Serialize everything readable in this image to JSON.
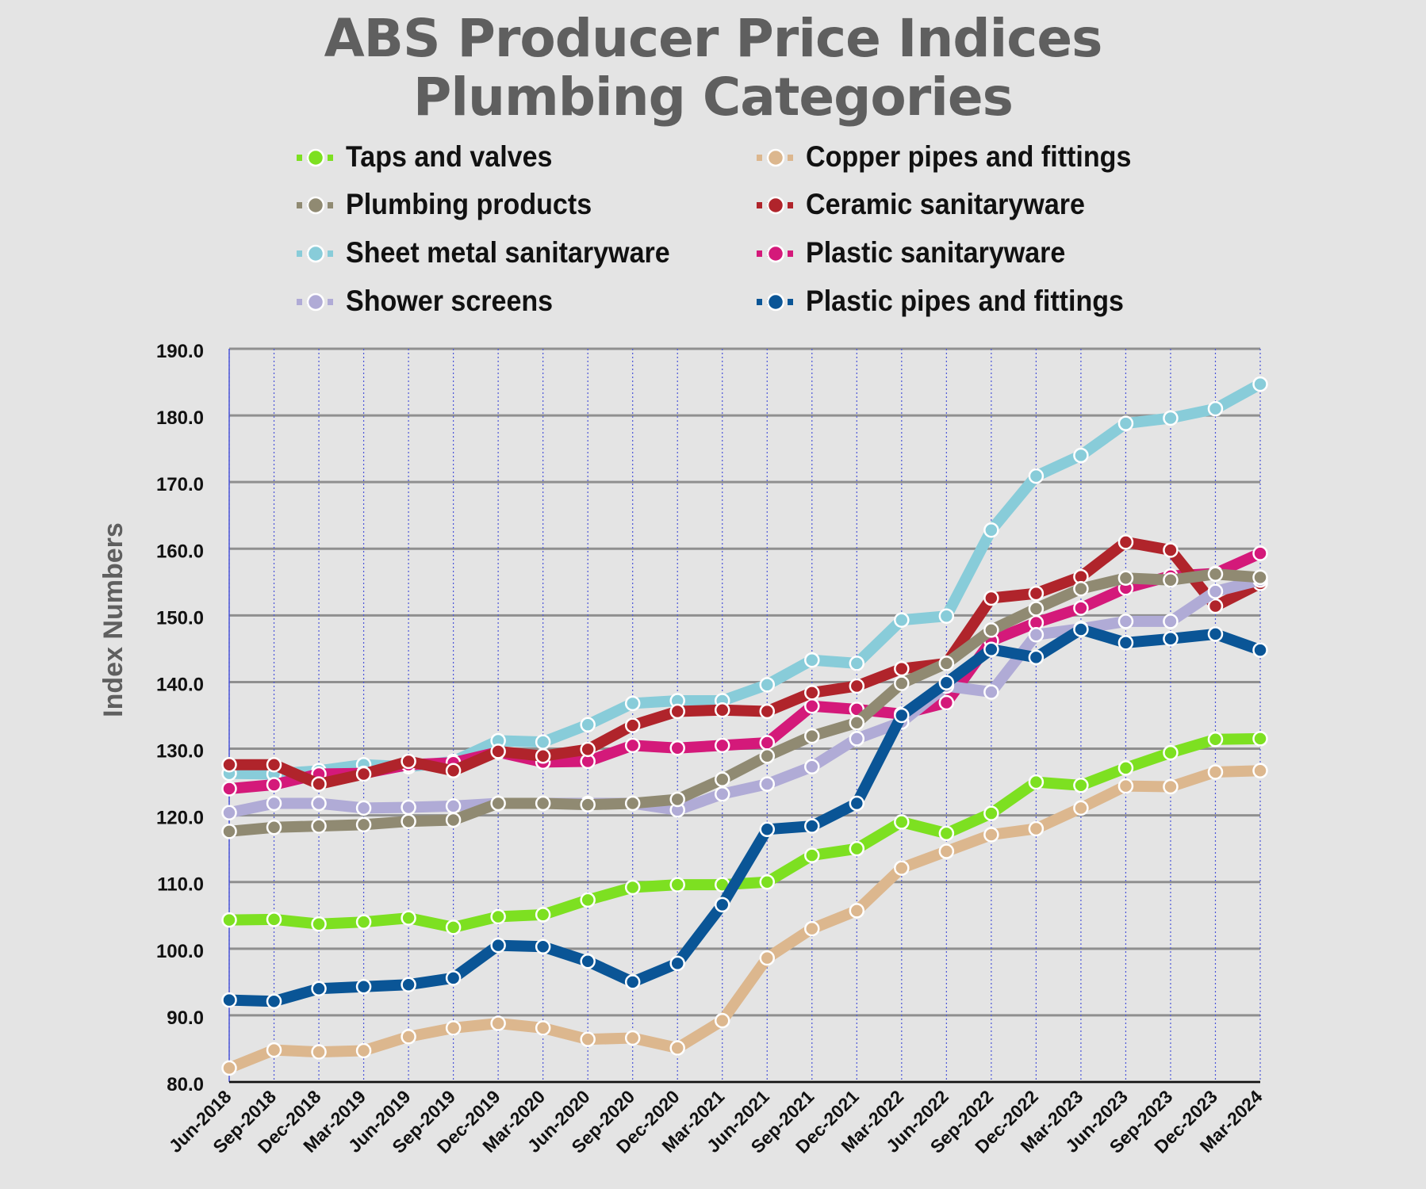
{
  "chart_data": {
    "type": "line",
    "title": [
      "ABS Producer Price Indices",
      "Plumbing Categories"
    ],
    "xlabel": "",
    "ylabel": "Index Numbers",
    "ylim": [
      80,
      190
    ],
    "yticks": [
      "80.0",
      "90.0",
      "100.0",
      "110.0",
      "120.0",
      "130.0",
      "140.0",
      "150.0",
      "160.0",
      "170.0",
      "180.0",
      "190.0"
    ],
    "grid": true,
    "legend_position": "top",
    "categories": [
      "Jun-2018",
      "Sep-2018",
      "Dec-2018",
      "Mar-2019",
      "Jun-2019",
      "Sep-2019",
      "Dec-2019",
      "Mar-2020",
      "Jun-2020",
      "Sep-2020",
      "Dec-2020",
      "Mar-2021",
      "Jun-2021",
      "Sep-2021",
      "Dec-2021",
      "Mar-2022",
      "Jun-2022",
      "Sep-2022",
      "Dec-2022",
      "Mar-2023",
      "Jun-2023",
      "Sep-2023",
      "Dec-2023",
      "Mar-2024"
    ],
    "series": [
      {
        "name": "Sheet metal sanitaryware",
        "color": "#88ccd9",
        "values": [
          126.3,
          126.2,
          126.7,
          127.6,
          127.3,
          128.1,
          131.2,
          131.0,
          133.6,
          136.8,
          137.2,
          137.2,
          139.6,
          143.3,
          142.8,
          149.3,
          149.9,
          162.8,
          170.9,
          174.0,
          178.8,
          179.6,
          181.0,
          184.7
        ]
      },
      {
        "name": "Plastic sanitaryware",
        "color": "#d4197a",
        "values": [
          124.0,
          124.6,
          126.2,
          126.3,
          127.6,
          127.9,
          129.5,
          128.0,
          128.1,
          130.5,
          130.1,
          130.5,
          130.9,
          136.4,
          135.9,
          135.2,
          136.9,
          146.2,
          148.9,
          151.1,
          154.1,
          155.9,
          156.3,
          159.3
        ]
      },
      {
        "name": "Ceramic sanitaryware",
        "color": "#b0242b",
        "values": [
          127.6,
          127.6,
          124.7,
          126.2,
          128.1,
          126.7,
          129.6,
          128.9,
          129.9,
          133.5,
          135.6,
          135.8,
          135.6,
          138.4,
          139.4,
          142.0,
          142.8,
          152.6,
          153.3,
          155.8,
          161.0,
          159.8,
          151.4,
          154.8
        ]
      },
      {
        "name": "Shower screens",
        "color": "#b0abd6",
        "values": [
          120.4,
          121.8,
          121.8,
          121.1,
          121.2,
          121.4,
          121.8,
          121.8,
          121.8,
          121.8,
          120.8,
          123.2,
          124.7,
          127.3,
          131.5,
          134.0,
          139.4,
          138.5,
          147.1,
          148.0,
          149.1,
          149.1,
          153.6,
          155.3
        ]
      },
      {
        "name": "Plumbing products",
        "color": "#908a72",
        "values": [
          117.6,
          118.2,
          118.4,
          118.6,
          119.1,
          119.3,
          121.8,
          121.8,
          121.6,
          121.8,
          122.4,
          125.4,
          128.9,
          131.9,
          133.9,
          139.8,
          142.8,
          147.8,
          151.0,
          154.0,
          155.6,
          155.3,
          156.2,
          155.7
        ]
      },
      {
        "name": "Taps and valves",
        "color": "#7de021",
        "values": [
          104.3,
          104.4,
          103.7,
          104.0,
          104.6,
          103.2,
          104.8,
          105.1,
          107.3,
          109.2,
          109.6,
          109.6,
          110.0,
          114.0,
          115.0,
          119.0,
          117.3,
          120.3,
          125.0,
          124.5,
          127.1,
          129.4,
          131.4,
          131.5
        ]
      },
      {
        "name": "Copper pipes and fittings",
        "color": "#dcb78e",
        "values": [
          82.1,
          84.8,
          84.5,
          84.7,
          86.8,
          88.1,
          88.8,
          88.1,
          86.4,
          86.6,
          85.1,
          89.2,
          98.6,
          103.0,
          105.7,
          112.1,
          114.6,
          117.1,
          118.0,
          121.1,
          124.4,
          124.3,
          126.5,
          126.7
        ]
      },
      {
        "name": "Plastic pipes and fittings",
        "color": "#0a5596",
        "values": [
          92.3,
          92.1,
          94.0,
          94.3,
          94.6,
          95.6,
          100.5,
          100.3,
          98.1,
          95.0,
          97.8,
          106.6,
          117.9,
          118.4,
          121.8,
          135.0,
          139.9,
          144.9,
          143.7,
          147.9,
          145.9,
          146.5,
          147.2,
          144.8
        ]
      }
    ]
  },
  "legend": [
    {
      "name": "Taps and valves",
      "color": "#7de021"
    },
    {
      "name": "Copper pipes and fittings",
      "color": "#dcb78e"
    },
    {
      "name": "Plumbing products",
      "color": "#908a72"
    },
    {
      "name": "Ceramic sanitaryware",
      "color": "#b0242b"
    },
    {
      "name": "Sheet metal sanitaryware",
      "color": "#88ccd9"
    },
    {
      "name": "Plastic sanitaryware",
      "color": "#d4197a"
    },
    {
      "name": "Shower screens",
      "color": "#b0abd6"
    },
    {
      "name": "Plastic pipes and fittings",
      "color": "#0a5596"
    }
  ]
}
